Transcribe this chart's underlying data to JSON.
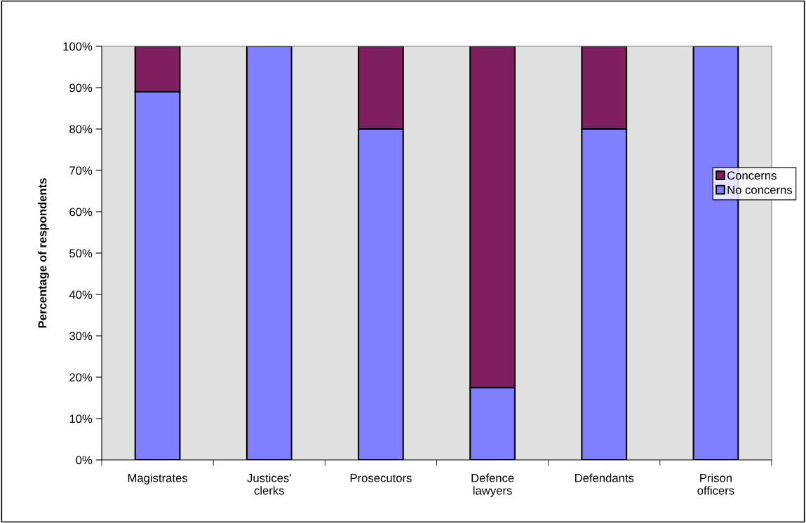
{
  "chart_data": {
    "type": "bar",
    "stacked": true,
    "ylabel": "Percentage of respondents",
    "categories": [
      "Magistrates",
      "Justices'\nclerks",
      "Prosecutors",
      "Defence\nlawyers",
      "Defendants",
      "Prison\nofficers"
    ],
    "series": [
      {
        "name": "No concerns",
        "color": "#8080ff",
        "values": [
          89,
          100,
          80,
          17.5,
          80,
          100
        ]
      },
      {
        "name": "Concerns",
        "color": "#7f1f5f",
        "values": [
          11,
          null,
          20,
          82.5,
          20,
          null
        ]
      }
    ],
    "ylim": [
      0,
      100
    ],
    "yticks": [
      {
        "value": 0,
        "label": "0%"
      },
      {
        "value": 10,
        "label": "10%"
      },
      {
        "value": 20,
        "label": "20%"
      },
      {
        "value": 30,
        "label": "30%"
      },
      {
        "value": 40,
        "label": "40%"
      },
      {
        "value": 50,
        "label": "50%"
      },
      {
        "value": 60,
        "label": "60%"
      },
      {
        "value": 70,
        "label": "70%"
      },
      {
        "value": 80,
        "label": "80%"
      },
      {
        "value": 90,
        "label": "90%"
      },
      {
        "value": 100,
        "label": "100%"
      }
    ],
    "legend": "right"
  }
}
